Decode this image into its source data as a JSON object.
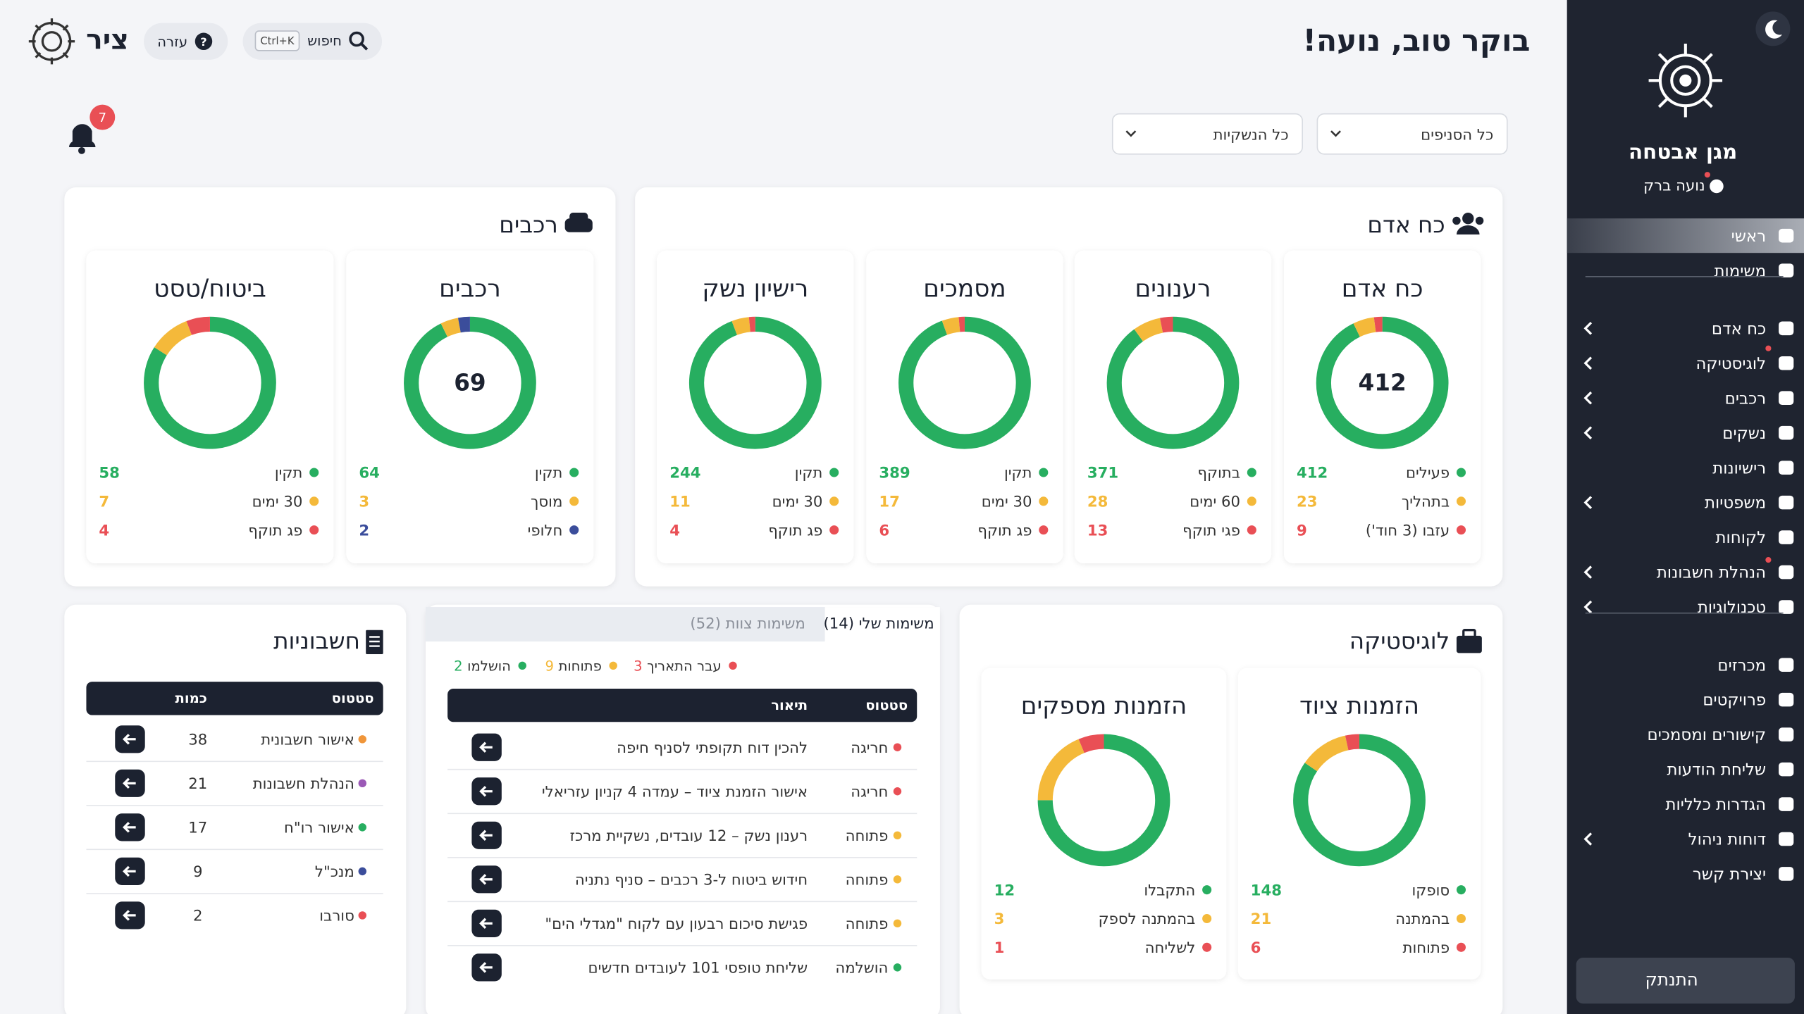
{
  "header": {
    "greeting": "בוקר טוב, נועה!",
    "search": "חיפוש",
    "shortcut": "Ctrl+K",
    "help": "עזרה",
    "logo": "ציר",
    "notifications": 7
  },
  "filters": [
    "כל הסניפים",
    "כל הנשקיות"
  ],
  "sidebar": {
    "brand": "מגן אבטחה",
    "user": "נועה ברק",
    "menu": [
      [
        {
          "label": "ראשי",
          "active": true
        },
        {
          "label": "משימות"
        }
      ],
      [
        {
          "label": "כח אדם",
          "submenu": true
        },
        {
          "label": "לוגיסטיקה",
          "submenu": true
        },
        {
          "label": "רכבים",
          "submenu": true
        },
        {
          "label": "נשקים",
          "submenu": true
        },
        {
          "label": "רישיונות"
        },
        {
          "label": "משפטיות",
          "submenu": true
        },
        {
          "label": "לקוחות"
        },
        {
          "label": "הנהלת חשבונות",
          "submenu": true
        },
        {
          "label": "טכנולוגיות",
          "submenu": true
        }
      ],
      [
        {
          "label": "מכרזים"
        },
        {
          "label": "פרויקטים"
        },
        {
          "label": "קישורים ומסמכים"
        },
        {
          "label": "שליחת הודעות"
        },
        {
          "label": "הגדרות כלליות"
        },
        {
          "label": "דוחות ניהול",
          "submenu": true
        },
        {
          "label": "יצירת קשר"
        }
      ]
    ],
    "logout": "התנתק"
  },
  "panels": {
    "personnel": "כח אדם",
    "vehicles": "רכבים",
    "logistics": "לוגיסטיקה"
  },
  "chart_data": [
    {
      "type": "pie",
      "title": "כח אדם",
      "center": 412,
      "categories": [
        "פעילים",
        "בתהליך",
        "עזבו (3 חוד')"
      ],
      "values": [
        412,
        23,
        9
      ],
      "colors": [
        "#27ae60",
        "#f4b93a",
        "#e94f55"
      ]
    },
    {
      "type": "pie",
      "title": "רענונים",
      "categories": [
        "בתוקף",
        "60 ימים",
        "פגי תוקף"
      ],
      "values": [
        371,
        28,
        13
      ],
      "colors": [
        "#27ae60",
        "#f4b93a",
        "#e94f55"
      ]
    },
    {
      "type": "pie",
      "title": "מסמכים",
      "categories": [
        "תקין",
        "30 ימים",
        "פג תוקף"
      ],
      "values": [
        389,
        17,
        6
      ],
      "colors": [
        "#27ae60",
        "#f4b93a",
        "#e94f55"
      ]
    },
    {
      "type": "pie",
      "title": "רישיון נשק",
      "categories": [
        "תקין",
        "30 ימים",
        "פג תוקף"
      ],
      "values": [
        244,
        11,
        4
      ],
      "colors": [
        "#27ae60",
        "#f4b93a",
        "#e94f55"
      ]
    },
    {
      "type": "pie",
      "title": "רכבים",
      "center": 69,
      "categories": [
        "תקין",
        "מוסך",
        "חלופי"
      ],
      "values": [
        64,
        3,
        2
      ],
      "colors": [
        "#27ae60",
        "#f4b93a",
        "#3b4d9b"
      ]
    },
    {
      "type": "pie",
      "title": "ביטוח/טסט",
      "categories": [
        "תקין",
        "30 ימים",
        "פג תוקף"
      ],
      "values": [
        58,
        7,
        4
      ],
      "colors": [
        "#27ae60",
        "#f4b93a",
        "#e94f55"
      ]
    },
    {
      "type": "pie",
      "title": "הזמנות ציוד",
      "categories": [
        "סופקו",
        "בהמתנה",
        "פתוחות"
      ],
      "values": [
        148,
        21,
        6
      ],
      "colors": [
        "#27ae60",
        "#f4b93a",
        "#e94f55"
      ]
    },
    {
      "type": "pie",
      "title": "הזמנות מספקים",
      "categories": [
        "התקבלו",
        "בהמתנה לספק",
        "לשליחה"
      ],
      "values": [
        12,
        3,
        1
      ],
      "colors": [
        "#27ae60",
        "#f4b93a",
        "#e94f55"
      ]
    }
  ],
  "tasks": {
    "tabs": [
      "משימות שלי (14)",
      "משימות צוות (52)"
    ],
    "legend": [
      {
        "label": "עבר התאריך",
        "count": 3,
        "color": "#e94f55"
      },
      {
        "label": "פתוחות",
        "count": 9,
        "color": "#f4b93a"
      },
      {
        "label": "הושלמו",
        "count": 2,
        "color": "#27ae60"
      }
    ],
    "columns": [
      "סטטוס",
      "תיאור"
    ],
    "rows": [
      {
        "status": "חריגה",
        "color": "#e94f55",
        "description": "להכין דוח תקופתי לסניף חיפה"
      },
      {
        "status": "חריגה",
        "color": "#e94f55",
        "description": "אישור הזמנת ציוד – עמדה 4 קניון עזריאלי"
      },
      {
        "status": "פתוחה",
        "color": "#f4b93a",
        "description": "רענון נשק – 12 עובדים, נשקיית מרכז"
      },
      {
        "status": "פתוחה",
        "color": "#f4b93a",
        "description": "חידוש ביטוח ל-3 רכבים – סניף נתניה"
      },
      {
        "status": "פתוחה",
        "color": "#f4b93a",
        "description": "פגישת סיכום רבעון עם לקוח \"מגדלי הים\""
      },
      {
        "status": "הושלמה",
        "color": "#27ae60",
        "description": "שליחת טופסי 101 לעובדים חדשים"
      }
    ]
  },
  "invoices": {
    "title": "חשבוניות",
    "columns": [
      "סטטוס",
      "כמות"
    ],
    "rows": [
      {
        "status": "אישור חשבונית",
        "count": 38,
        "color": "#f0963a"
      },
      {
        "status": "הנהלת חשבונות",
        "count": 21,
        "color": "#9b59b6"
      },
      {
        "status": "אישור רו\"ח",
        "count": 17,
        "color": "#27ae60"
      },
      {
        "status": "מנכ\"ל",
        "count": 9,
        "color": "#3b4d9b"
      },
      {
        "status": "סורבו",
        "count": 2,
        "color": "#e94f55"
      }
    ]
  }
}
